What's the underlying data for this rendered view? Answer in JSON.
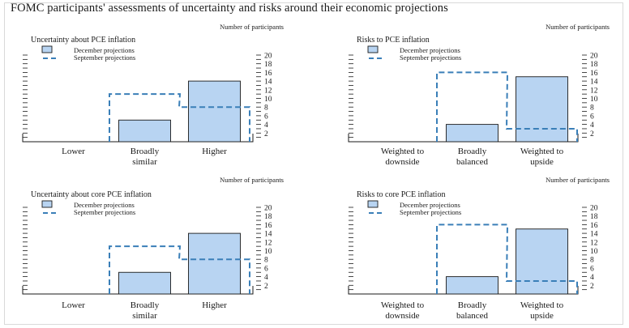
{
  "page_title": "FOMC participants' assessments of uncertainty and risks around their economic projections",
  "colors": {
    "bar_fill": "#b8d4f2",
    "bar_stroke": "#1a1a1a",
    "september_line": "#3a7fb8",
    "axis": "#1a1a1a"
  },
  "chart_data": [
    {
      "type": "bar",
      "title": "Uncertainty about PCE inflation",
      "ylabel": "Number of participants",
      "categories": [
        [
          "Lower"
        ],
        [
          "Broadly",
          "similar"
        ],
        [
          "Higher"
        ]
      ],
      "ylim": [
        0,
        20
      ],
      "yticks": [
        "2",
        "4",
        "6",
        "8",
        "10",
        "12",
        "14",
        "16",
        "18",
        "20"
      ],
      "legend": [
        "December projections",
        "September projections"
      ],
      "series": [
        {
          "name": "December projections",
          "style": "bar",
          "values": [
            0,
            5,
            14
          ]
        },
        {
          "name": "September projections",
          "style": "dashed-outline",
          "values": [
            0,
            11,
            8
          ]
        }
      ]
    },
    {
      "type": "bar",
      "title": "Risks to PCE inflation",
      "ylabel": "Number of participants",
      "categories": [
        [
          "Weighted to",
          "downside"
        ],
        [
          "Broadly",
          "balanced"
        ],
        [
          "Weighted to",
          "upside"
        ]
      ],
      "ylim": [
        0,
        20
      ],
      "yticks": [
        "2",
        "4",
        "6",
        "8",
        "10",
        "12",
        "14",
        "16",
        "18",
        "20"
      ],
      "legend": [
        "December projections",
        "September projections"
      ],
      "series": [
        {
          "name": "December projections",
          "style": "bar",
          "values": [
            0,
            4,
            15
          ]
        },
        {
          "name": "September projections",
          "style": "dashed-outline",
          "values": [
            0,
            16,
            3
          ]
        }
      ]
    },
    {
      "type": "bar",
      "title": "Uncertainty about core PCE inflation",
      "ylabel": "Number of participants",
      "categories": [
        [
          "Lower"
        ],
        [
          "Broadly",
          "similar"
        ],
        [
          "Higher"
        ]
      ],
      "ylim": [
        0,
        20
      ],
      "yticks": [
        "2",
        "4",
        "6",
        "8",
        "10",
        "12",
        "14",
        "16",
        "18",
        "20"
      ],
      "legend": [
        "December projections",
        "September projections"
      ],
      "series": [
        {
          "name": "December projections",
          "style": "bar",
          "values": [
            0,
            5,
            14
          ]
        },
        {
          "name": "September projections",
          "style": "dashed-outline",
          "values": [
            0,
            11,
            8
          ]
        }
      ]
    },
    {
      "type": "bar",
      "title": "Risks to core PCE inflation",
      "ylabel": "Number of participants",
      "categories": [
        [
          "Weighted to",
          "downside"
        ],
        [
          "Broadly",
          "balanced"
        ],
        [
          "Weighted to",
          "upside"
        ]
      ],
      "ylim": [
        0,
        20
      ],
      "yticks": [
        "2",
        "4",
        "6",
        "8",
        "10",
        "12",
        "14",
        "16",
        "18",
        "20"
      ],
      "legend": [
        "December projections",
        "September projections"
      ],
      "series": [
        {
          "name": "December projections",
          "style": "bar",
          "values": [
            0,
            4,
            15
          ]
        },
        {
          "name": "September projections",
          "style": "dashed-outline",
          "values": [
            0,
            16,
            3
          ]
        }
      ]
    }
  ]
}
